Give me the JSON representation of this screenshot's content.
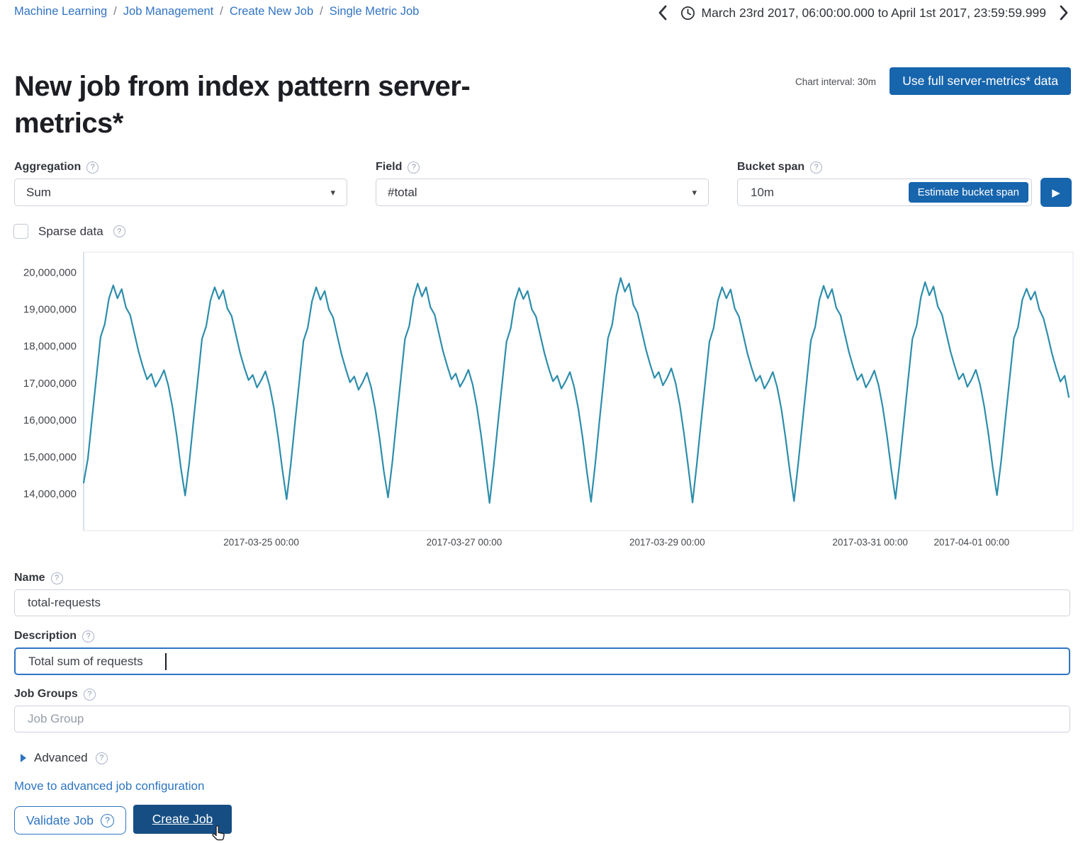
{
  "breadcrumb": {
    "separator": "/",
    "items": [
      "Machine Learning",
      "Job Management",
      "Create New Job",
      "Single Metric Job"
    ]
  },
  "timepicker": {
    "range_text": "March 23rd 2017, 06:00:00.000 to April 1st 2017, 23:59:59.999"
  },
  "header": {
    "title": "New job from index pattern server-metrics*",
    "chart_interval_label": "Chart interval: 30m",
    "use_full_data_button": "Use full server-metrics* data"
  },
  "form": {
    "aggregation": {
      "label": "Aggregation",
      "value": "Sum"
    },
    "field": {
      "label": "Field",
      "value": "#total"
    },
    "bucket_span": {
      "label": "Bucket span",
      "value": "10m",
      "estimate_button": "Estimate bucket span"
    },
    "sparse_data": {
      "label": "Sparse data",
      "checked": false
    },
    "name": {
      "label": "Name",
      "value": "total-requests"
    },
    "description": {
      "label": "Description",
      "value": "Total sum of requests"
    },
    "job_groups": {
      "label": "Job Groups",
      "placeholder": "Job Group"
    },
    "advanced": {
      "label": "Advanced"
    }
  },
  "footer": {
    "advanced_link": "Move to advanced job configuration",
    "validate_button": "Validate Job",
    "create_button": "Create Job"
  },
  "icons": {
    "help_glyph": "?",
    "play_glyph": "▶",
    "caret_glyph": "▾"
  },
  "colors": {
    "link_blue": "#3173c2",
    "primary_button_blue": "#1765ad",
    "create_button_navy": "#164e84",
    "chart_line_teal": "#2d8dab"
  },
  "chart_data": {
    "type": "line",
    "title": "",
    "xlabel": "",
    "ylabel": "",
    "legend": "none",
    "grid": "off",
    "line_color": "#2d8dab",
    "plot_border_color": "#e3e6ed",
    "axis_line_color": "#ccd3df",
    "axis_label_color": "#44474d",
    "x_domain_hours": [
      0,
      234
    ],
    "x_start": "2017-03-23 06:00",
    "x_end": "2017-04-01 23:59",
    "hours_per_point": 1,
    "y_domain_millions": [
      13.0,
      20.55
    ],
    "y_ticks": [
      {
        "label": "20,000,000",
        "value": 20.0
      },
      {
        "label": "19,000,000",
        "value": 19.0
      },
      {
        "label": "18,000,000",
        "value": 18.0
      },
      {
        "label": "17,000,000",
        "value": 17.0
      },
      {
        "label": "16,000,000",
        "value": 16.0
      },
      {
        "label": "15,000,000",
        "value": 15.0
      },
      {
        "label": "14,000,000",
        "value": 14.0
      }
    ],
    "x_ticks": [
      {
        "label": "2017-03-25 00:00",
        "hour": 42
      },
      {
        "label": "2017-03-27 00:00",
        "hour": 90
      },
      {
        "label": "2017-03-29 00:00",
        "hour": 138
      },
      {
        "label": "2017-03-31 00:00",
        "hour": 186
      },
      {
        "label": "2017-04-01 00:00",
        "hour": 210
      }
    ],
    "values_by_day_millions": [
      [
        14.3,
        14.95,
        16.05,
        17.15,
        18.25,
        18.6,
        19.3,
        19.65,
        19.3,
        19.55,
        19.05,
        18.85,
        18.35,
        17.85,
        17.45,
        17.1,
        17.25,
        16.9,
        17.1,
        17.35,
        16.95,
        16.35,
        15.6,
        14.7
      ],
      [
        13.95,
        14.85,
        16.0,
        17.1,
        18.2,
        18.55,
        19.25,
        19.6,
        19.28,
        19.52,
        19.02,
        18.82,
        18.32,
        17.82,
        17.42,
        17.08,
        17.22,
        16.88,
        17.08,
        17.32,
        16.92,
        16.32,
        15.55,
        14.65
      ],
      [
        13.85,
        14.8,
        15.95,
        17.05,
        18.15,
        18.5,
        19.22,
        19.6,
        19.26,
        19.5,
        19.0,
        18.78,
        18.28,
        17.78,
        17.38,
        17.02,
        17.18,
        16.82,
        17.02,
        17.28,
        16.88,
        16.28,
        15.5,
        14.6
      ],
      [
        13.9,
        14.85,
        16.0,
        17.1,
        18.2,
        18.55,
        19.3,
        19.7,
        19.35,
        19.6,
        19.06,
        18.86,
        18.36,
        17.86,
        17.46,
        17.1,
        17.26,
        16.9,
        17.1,
        17.36,
        16.96,
        16.36,
        15.58,
        14.66
      ],
      [
        13.75,
        14.78,
        15.92,
        17.02,
        18.12,
        18.48,
        19.22,
        19.58,
        19.28,
        19.5,
        19.0,
        18.8,
        18.3,
        17.8,
        17.4,
        17.05,
        17.2,
        16.85,
        17.05,
        17.3,
        16.9,
        16.3,
        15.52,
        14.62
      ],
      [
        13.78,
        14.82,
        15.98,
        17.1,
        18.22,
        18.58,
        19.38,
        19.85,
        19.48,
        19.7,
        19.12,
        18.9,
        18.4,
        17.9,
        17.5,
        17.14,
        17.3,
        16.94,
        17.14,
        17.4,
        17.0,
        16.4,
        15.62,
        14.72
      ],
      [
        13.76,
        14.78,
        15.92,
        17.02,
        18.12,
        18.5,
        19.24,
        19.6,
        19.3,
        19.54,
        19.02,
        18.8,
        18.3,
        17.8,
        17.4,
        17.05,
        17.2,
        16.85,
        17.05,
        17.3,
        16.9,
        16.3,
        15.52,
        14.62
      ],
      [
        13.8,
        14.82,
        15.94,
        17.06,
        18.16,
        18.52,
        19.26,
        19.64,
        19.3,
        19.55,
        19.04,
        18.84,
        18.34,
        17.84,
        17.44,
        17.08,
        17.24,
        16.88,
        17.08,
        17.34,
        16.94,
        16.34,
        15.56,
        14.66
      ],
      [
        13.86,
        14.86,
        15.98,
        17.1,
        18.2,
        18.56,
        19.32,
        19.74,
        19.38,
        19.62,
        19.08,
        18.86,
        18.36,
        17.86,
        17.46,
        17.1,
        17.26,
        16.9,
        17.1,
        17.36,
        16.96,
        16.36,
        15.6,
        14.72
      ],
      [
        13.96,
        14.9,
        16.02,
        17.12,
        18.22,
        18.52,
        19.26,
        19.56,
        19.26,
        19.48,
        19.0,
        18.76,
        18.3,
        17.8,
        17.4,
        17.04,
        17.2,
        16.62
      ]
    ]
  }
}
